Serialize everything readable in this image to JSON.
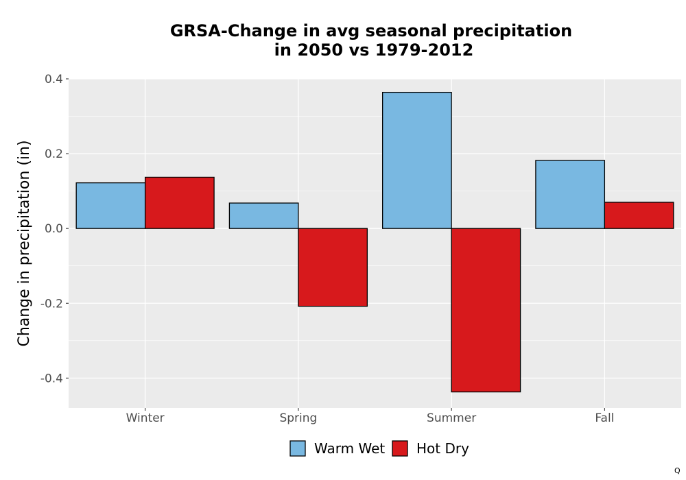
{
  "chart_data": {
    "type": "bar",
    "title": [
      "GRSA-Change in avg seasonal precipitation",
      "in 2050 vs 1979-2012"
    ],
    "xlabel": "",
    "ylabel": "Change in precipitation (in)",
    "categories": [
      "Winter",
      "Spring",
      "Summer",
      "Fall"
    ],
    "series": [
      {
        "name": "Warm Wet",
        "color": "#79b8e1",
        "values": [
          0.122,
          0.068,
          0.364,
          0.182
        ]
      },
      {
        "name": "Hot Dry",
        "color": "#d7191c",
        "values": [
          0.137,
          -0.208,
          -0.437,
          0.07
        ]
      }
    ],
    "ylim": [
      -0.48,
      0.4
    ],
    "yticks": [
      -0.4,
      -0.2,
      0.0,
      0.2,
      0.4
    ],
    "ytick_labels": [
      "-0.4",
      "-0.2",
      "0.0",
      "0.2",
      "0.4"
    ],
    "grid": true,
    "legend_position": "bottom",
    "panel_color": "#ebebeb"
  },
  "corner_mark": "Q"
}
